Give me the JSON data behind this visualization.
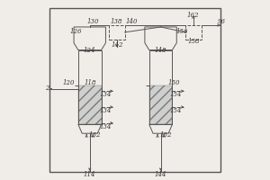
{
  "bg_color": "#f0ede8",
  "line_color": "#555555",
  "font_color": "#333333",
  "font_size": 5
}
